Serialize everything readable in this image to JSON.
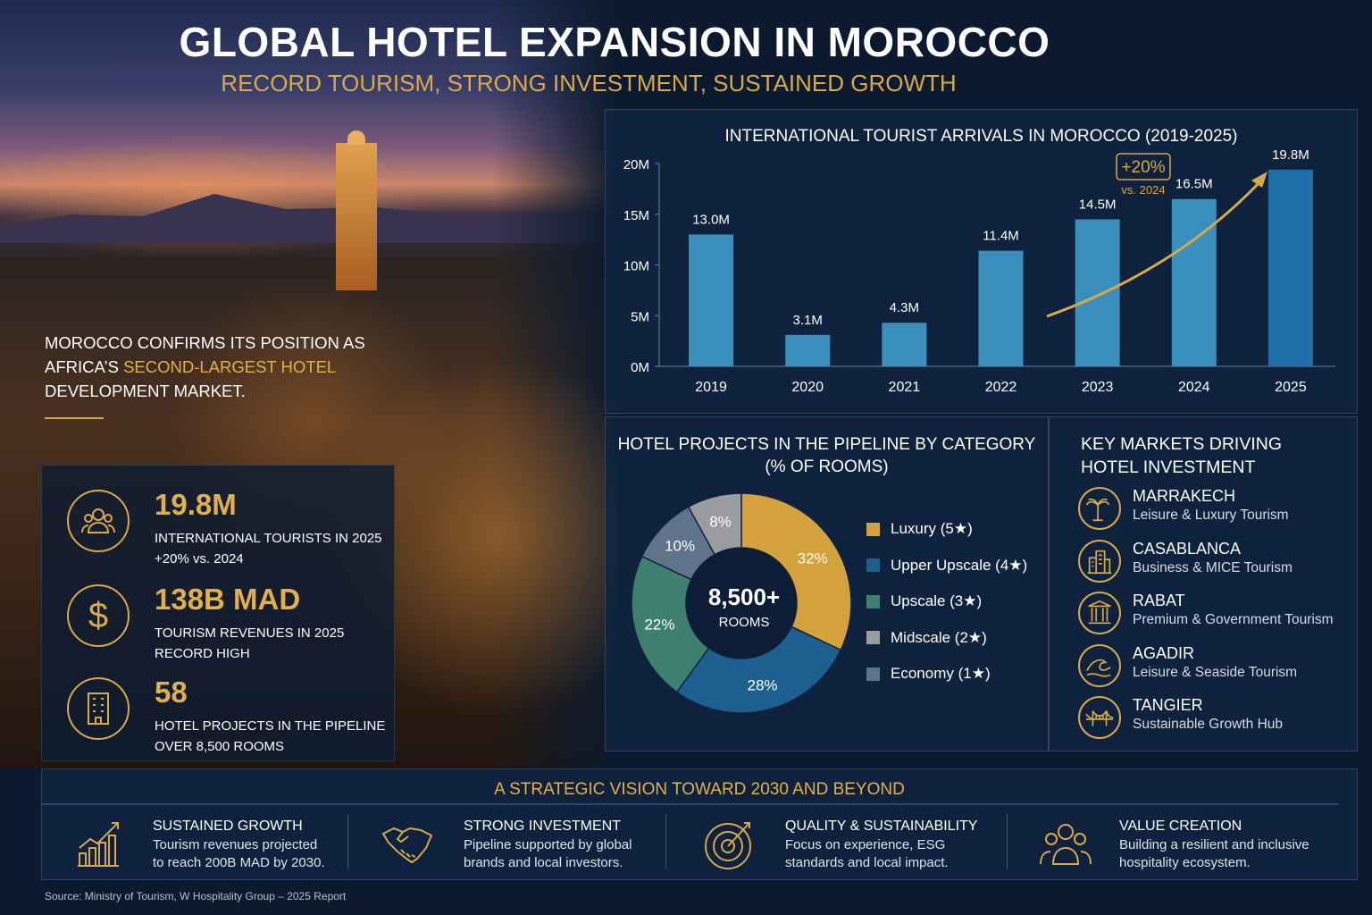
{
  "header": {
    "title": "GLOBAL HOTEL EXPANSION IN MOROCCO",
    "subtitle": "RECORD TOURISM, STRONG INVESTMENT, SUSTAINED GROWTH"
  },
  "intro": {
    "line1": "MOROCCO CONFIRMS ITS POSITION AS",
    "line2a": "AFRICA’S ",
    "highlight": "SECOND-LARGEST HOTEL",
    "line3": "DEVELOPMENT MARKET."
  },
  "stats": [
    {
      "icon": "people-icon",
      "value": "19.8M",
      "label1": "INTERNATIONAL TOURISTS IN 2025",
      "label2": "+20% vs. 2024"
    },
    {
      "icon": "dollar-icon",
      "value": "138B MAD",
      "label1": "TOURISM REVENUES IN 2025",
      "label2": "RECORD HIGH"
    },
    {
      "icon": "hotel-building-icon",
      "value": "58",
      "label1": "HOTEL PROJECTS IN THE PIPELINE",
      "label2": "OVER 8,500 ROOMS"
    }
  ],
  "chart_data": [
    {
      "type": "bar",
      "title": "INTERNATIONAL TOURIST ARRIVALS IN MOROCCO (2019-2025)",
      "categories": [
        "2019",
        "2020",
        "2021",
        "2022",
        "2023",
        "2024",
        "2025"
      ],
      "values": [
        13.0,
        3.1,
        4.3,
        11.4,
        14.5,
        16.5,
        19.8
      ],
      "data_labels": [
        "13.0M",
        "3.1M",
        "4.3M",
        "11.4M",
        "14.5M",
        "16.5M",
        "19.8M"
      ],
      "yticks": [
        "0M",
        "5M",
        "10M",
        "15M",
        "20M"
      ],
      "ylim": [
        0,
        20
      ],
      "unit": "M",
      "annotation": {
        "value": "+20%",
        "sub": "vs. 2024"
      },
      "bar_color": "#3a8fbf",
      "highlight_color": "#1f6ea8",
      "arrow_color": "#d9a84a"
    },
    {
      "type": "pie",
      "title": "HOTEL PROJECTS IN THE PIPELINE BY CATEGORY",
      "subtitle": "(% OF ROOMS)",
      "center_value": "8,500+",
      "center_label": "ROOMS",
      "categories": [
        "Luxury (5★)",
        "Upper Upscale (4★)",
        "Upscale (3★)",
        "Midscale (2★)",
        "Economy (1★)"
      ],
      "values": [
        32,
        28,
        22,
        8,
        10
      ],
      "colors": [
        "#d4a23c",
        "#1d5f8f",
        "#3f7f6e",
        "#9a9ca0",
        "#5f738a"
      ],
      "draw_order": [
        0,
        1,
        2,
        4,
        3
      ]
    }
  ],
  "markets": {
    "title1": "KEY MARKETS DRIVING",
    "title2": "HOTEL INVESTMENT",
    "items": [
      {
        "icon": "palm-tree-icon",
        "name": "MARRAKECH",
        "desc": "Leisure & Luxury Tourism"
      },
      {
        "icon": "city-buildings-icon",
        "name": "CASABLANCA",
        "desc": "Business & MICE Tourism"
      },
      {
        "icon": "columns-icon",
        "name": "RABAT",
        "desc": "Premium & Government Tourism"
      },
      {
        "icon": "wave-icon",
        "name": "AGADIR",
        "desc": "Leisure & Seaside Tourism"
      },
      {
        "icon": "bridge-icon",
        "name": "TANGIER",
        "desc": "Sustainable Growth Hub"
      }
    ]
  },
  "vision": {
    "title": "A STRATEGIC VISION TOWARD 2030 AND BEYOND",
    "pillars": [
      {
        "icon": "growth-chart-icon",
        "title": "SUSTAINED GROWTH",
        "line1": "Tourism revenues projected",
        "line2": "to reach 200B MAD by 2030."
      },
      {
        "icon": "handshake-icon",
        "title": "STRONG INVESTMENT",
        "line1": "Pipeline supported by global",
        "line2": "brands and local investors."
      },
      {
        "icon": "target-icon",
        "title": "QUALITY & SUSTAINABILITY",
        "line1": "Focus on experience, ESG",
        "line2": "standards and local impact."
      },
      {
        "icon": "people-group-icon",
        "title": "VALUE CREATION",
        "line1": "Building a resilient and inclusive",
        "line2": "hospitality ecosystem."
      }
    ]
  },
  "source": "Source: Ministry of Tourism, W Hospitality Group – 2025 Report",
  "accent": "#d9a84a"
}
